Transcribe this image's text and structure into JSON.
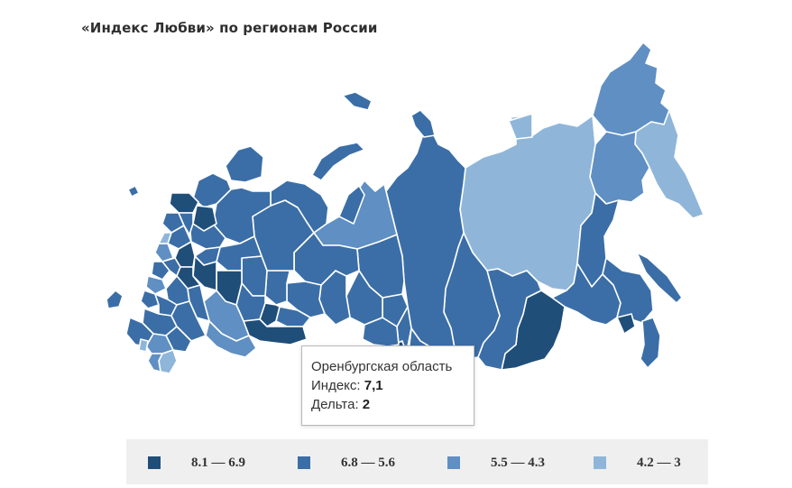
{
  "title": "«Индекс Любви» по регионам России",
  "colors": {
    "class1": "#1f4e79",
    "class2": "#3b6ea6",
    "class3": "#5f8fc3",
    "class4": "#8fb6d9",
    "border": "#ffffff"
  },
  "tooltip": {
    "region": "Оренбургская область",
    "index_label": "Индекс:",
    "index_value": "7,1",
    "delta_label": "Дельта:",
    "delta_value": "2"
  },
  "legend": [
    {
      "label": "8.1 — 6.9",
      "color": "#1f4e79"
    },
    {
      "label": "6.8 — 5.6",
      "color": "#3b6ea6"
    },
    {
      "label": "5.5 — 4.3",
      "color": "#5f8fc3"
    },
    {
      "label": "4.2 — 3",
      "color": "#8fb6d9"
    }
  ]
}
